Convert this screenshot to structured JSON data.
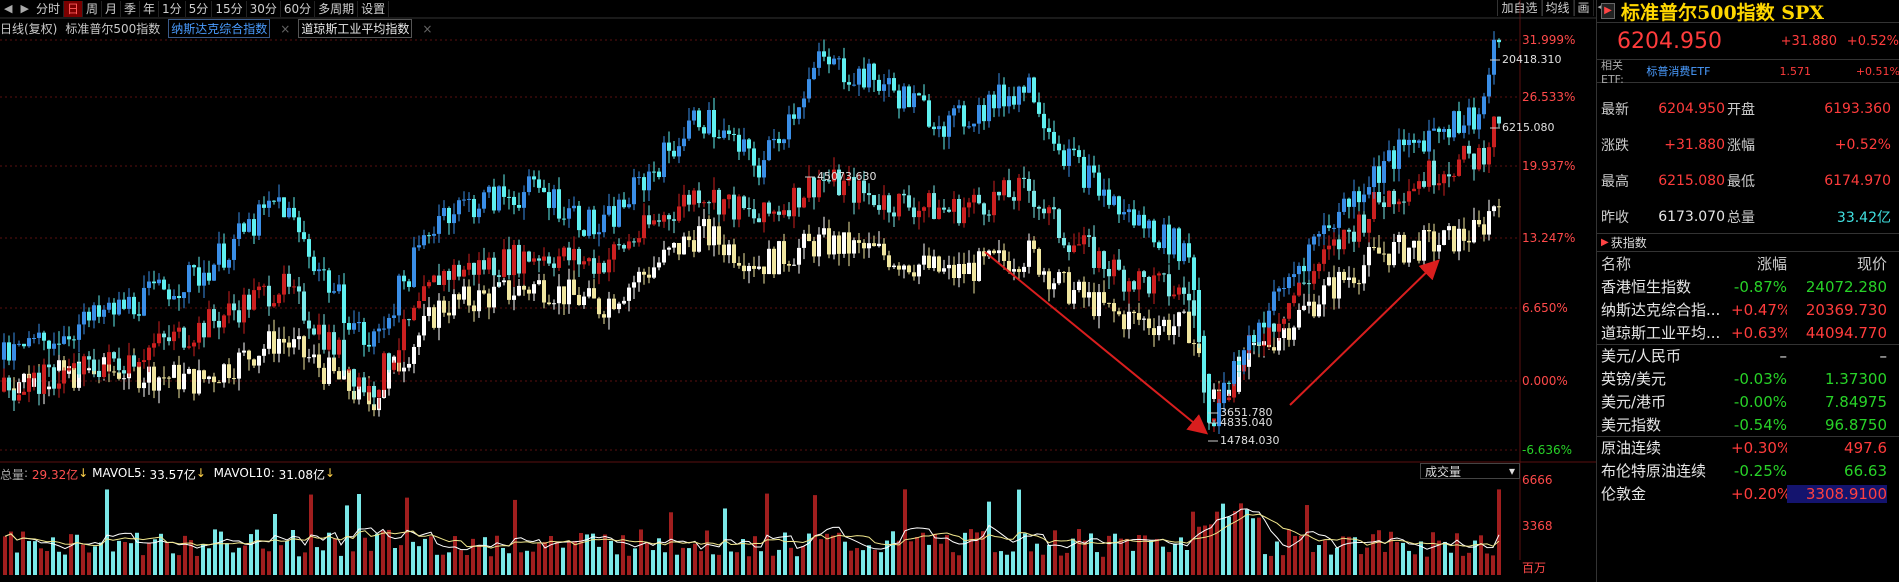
{
  "toolbar": {
    "tabs": [
      {
        "label": "分时",
        "active": false
      },
      {
        "label": "日",
        "active": true
      },
      {
        "label": "周",
        "active": false
      },
      {
        "label": "月",
        "active": false
      },
      {
        "label": "季",
        "active": false
      },
      {
        "label": "年",
        "active": false
      },
      {
        "label": "1分",
        "active": false
      },
      {
        "label": "5分",
        "active": false
      },
      {
        "label": "15分",
        "active": false
      },
      {
        "label": "30分",
        "active": false
      },
      {
        "label": "60分",
        "active": false
      },
      {
        "label": "多周期",
        "active": false
      },
      {
        "label": "设置",
        "active": false
      }
    ],
    "right": [
      "加自选",
      "均线",
      "画"
    ]
  },
  "legend": {
    "mode": "日线(复权)",
    "main": "标准普尔500指数",
    "overlay1": "纳斯达克综合指数",
    "overlay2": "道琼斯工业平均指数",
    "close": "×"
  },
  "axis_right": [
    "31.999%",
    "26.533%",
    "19.937%",
    "13.247%",
    "6.650%",
    "0.000%",
    "-6.636%"
  ],
  "annotations": {
    "high1": "20418.310",
    "high2": "6215.080",
    "mid": "45073.630",
    "low1": "3651.780",
    "low2": "4835.040",
    "low3": "14784.030"
  },
  "volume": {
    "total_label": "总量",
    "total_value": "29.32亿",
    "mavol5_label": "MAVOL5",
    "mavol5_value": "33.57亿",
    "mavol10_label": "MAVOL10",
    "mavol10_value": "31.08亿",
    "select": "成交量",
    "axis": [
      "6666",
      "3368",
      "百万"
    ]
  },
  "colors": {
    "up": "#ff3c3c",
    "down": "#28d228",
    "spx_bull": "#3a8ee6",
    "cyan": "#5ff0f0",
    "arrow": "#d91e1e"
  },
  "panel": {
    "title": "标准普尔500指数 SPX",
    "price": "6204.950",
    "change": "+31.880",
    "change_pct": "+0.52%",
    "etf_label": "相关ETF:",
    "etf_name": "标普消费ETF",
    "etf_price": "1.571",
    "etf_pct": "+0.51%",
    "stats": [
      {
        "l1": "最新",
        "v1": "6204.950",
        "l2": "开盘",
        "v2": "6193.360",
        "c1": "red",
        "c2": "red"
      },
      {
        "l1": "涨跌",
        "v1": "+31.880",
        "l2": "涨幅",
        "v2": "+0.52%",
        "c1": "red",
        "c2": "red"
      },
      {
        "l1": "最高",
        "v1": "6215.080",
        "l2": "最低",
        "v2": "6174.970",
        "c1": "red",
        "c2": "red"
      },
      {
        "l1": "昨收",
        "v1": "6173.070",
        "l2": "总量",
        "v2": "33.42亿",
        "c1": "white",
        "c2": "cyan"
      }
    ],
    "section_title": "获指数",
    "list_header": [
      "名称",
      "涨幅",
      "现价"
    ],
    "list": [
      {
        "name": "香港恒生指数",
        "pct": "-0.87%",
        "price": "24072.280",
        "c": "green"
      },
      {
        "name": "纳斯达克综合指...",
        "pct": "+0.47%",
        "price": "20369.730",
        "c": "red"
      },
      {
        "name": "道琼斯工业平均...",
        "pct": "+0.63%",
        "price": "44094.770",
        "c": "red"
      },
      {
        "name": "美元/人民币",
        "pct": "–",
        "price": "–",
        "c": "white"
      },
      {
        "name": "英镑/美元",
        "pct": "-0.03%",
        "price": "1.37300",
        "c": "green"
      },
      {
        "name": "美元/港币",
        "pct": "-0.00%",
        "price": "7.84975",
        "c": "green"
      },
      {
        "name": "美元指数",
        "pct": "-0.54%",
        "price": "96.8750",
        "c": "green"
      },
      {
        "name": "原油连续",
        "pct": "+0.30%",
        "price": "497.6",
        "c": "red"
      },
      {
        "name": "布伦特原油连续",
        "pct": "-0.25%",
        "price": "66.63",
        "c": "green"
      },
      {
        "name": "伦敦金",
        "pct": "+0.20%",
        "price": "3308.9100",
        "c": "red"
      }
    ]
  }
}
